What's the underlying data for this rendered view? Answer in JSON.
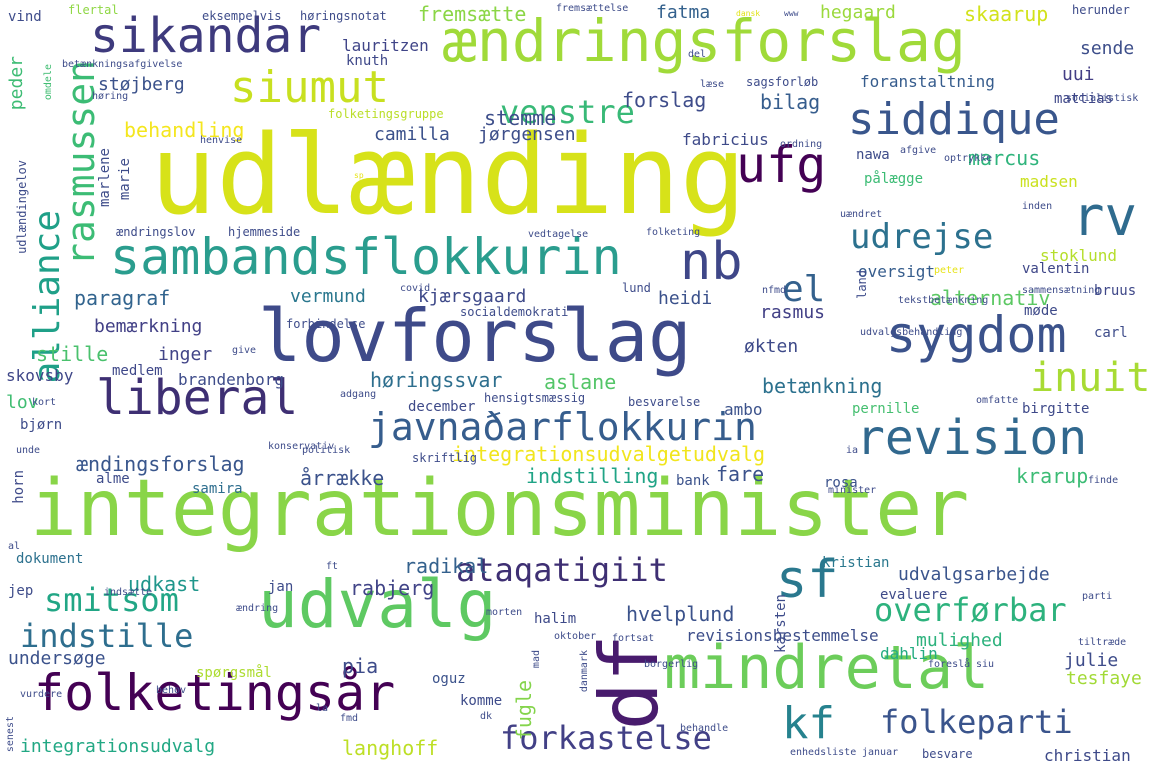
{
  "words": [
    {
      "text": "udlænding",
      "color": "#d7e219"
    },
    {
      "text": "integrationsminister",
      "color": "#89d548"
    },
    {
      "text": "lovforslag",
      "color": "#3e4a89"
    },
    {
      "text": "ændringsforslag",
      "color": "#a0da39"
    },
    {
      "text": "sambandsflokkurin",
      "color": "#2a9d8e"
    },
    {
      "text": "udvalg",
      "color": "#5ec962"
    },
    {
      "text": "mindretal",
      "color": "#6ccd5a"
    },
    {
      "text": "folketingsår",
      "color": "#440154"
    },
    {
      "text": "revision",
      "color": "#31688e"
    },
    {
      "text": "sygdom",
      "color": "#3b528b"
    },
    {
      "text": "liberal",
      "color": "#3e2f73"
    },
    {
      "text": "javnaðarflokkurin",
      "color": "#365d8d"
    },
    {
      "text": "siddique",
      "color": "#39568c"
    },
    {
      "text": "sikandar",
      "color": "#3e3a7d"
    },
    {
      "text": "siumut",
      "color": "#c8e020"
    },
    {
      "text": "rasmussen",
      "color": "#3cbc75"
    },
    {
      "text": "alliance",
      "color": "#1fa088"
    },
    {
      "text": "ufg",
      "color": "#440154"
    },
    {
      "text": "rv",
      "color": "#2f6b8e"
    },
    {
      "text": "nb",
      "color": "#3f4788"
    },
    {
      "text": "el",
      "color": "#34618d"
    },
    {
      "text": "df",
      "color": "#481b6d"
    },
    {
      "text": "sf",
      "color": "#2a788e"
    },
    {
      "text": "kf",
      "color": "#26828e"
    },
    {
      "text": "udrejse",
      "color": "#2c718e"
    },
    {
      "text": "inuit",
      "color": "#a8db34"
    },
    {
      "text": "venstre",
      "color": "#38b977"
    },
    {
      "text": "ataqatigiit",
      "color": "#3e2f73"
    },
    {
      "text": "smitsom",
      "color": "#21a685"
    },
    {
      "text": "indstille",
      "color": "#2e6e8e"
    },
    {
      "text": "overførbar",
      "color": "#2db27d"
    },
    {
      "text": "forkastelse",
      "color": "#424086"
    },
    {
      "text": "folkeparti",
      "color": "#3a548c"
    },
    {
      "text": "fremsætte",
      "color": "#8bd646"
    },
    {
      "text": "fatma",
      "color": "#34618d"
    },
    {
      "text": "hegaard",
      "color": "#9bd93c"
    },
    {
      "text": "skaarup",
      "color": "#d2e21b"
    },
    {
      "text": "sende",
      "color": "#3d4e8a"
    },
    {
      "text": "uui",
      "color": "#433e85"
    },
    {
      "text": "støjberg",
      "color": "#3b528b"
    },
    {
      "text": "forslag",
      "color": "#3e4c8a"
    },
    {
      "text": "bilag",
      "color": "#365d8d"
    },
    {
      "text": "behandling",
      "color": "#f4e61e"
    },
    {
      "text": "stemme",
      "color": "#3d4e8a"
    },
    {
      "text": "camilla",
      "color": "#3b518b"
    },
    {
      "text": "jørgensen",
      "color": "#3d4e8a"
    },
    {
      "text": "fabricius",
      "color": "#3e4a89"
    },
    {
      "text": "marcus",
      "color": "#2fb47c"
    },
    {
      "text": "madsen",
      "color": "#cae11f"
    },
    {
      "text": "pålægge",
      "color": "#3cbc75"
    },
    {
      "text": "nawa",
      "color": "#3e4c8a"
    },
    {
      "text": "mattias",
      "color": "#3f4788"
    },
    {
      "text": "foranstaltning",
      "color": "#365c8d"
    },
    {
      "text": "lauritzen",
      "color": "#404588"
    },
    {
      "text": "knuth",
      "color": "#3f4889"
    },
    {
      "text": "peder",
      "color": "#3dbc74"
    },
    {
      "text": "paragraf",
      "color": "#32648e"
    },
    {
      "text": "vermund",
      "color": "#2a778e"
    },
    {
      "text": "kjærsgaard",
      "color": "#3e4989"
    },
    {
      "text": "alternativ",
      "color": "#5cc863"
    },
    {
      "text": "heidi",
      "color": "#3b518b"
    },
    {
      "text": "rasmus",
      "color": "#424086"
    },
    {
      "text": "bemærkning",
      "color": "#424086"
    },
    {
      "text": "stille",
      "color": "#4ac16d"
    },
    {
      "text": "inger",
      "color": "#414487"
    },
    {
      "text": "økten",
      "color": "#3e4a89"
    },
    {
      "text": "høringssvar",
      "color": "#2e6f8e"
    },
    {
      "text": "aslane",
      "color": "#54c568"
    },
    {
      "text": "betænkning",
      "color": "#2c718e"
    },
    {
      "text": "lov",
      "color": "#40bd72"
    },
    {
      "text": "skovsby",
      "color": "#3f4788"
    },
    {
      "text": "brandenborg",
      "color": "#3e4c8a"
    },
    {
      "text": "medlem",
      "color": "#3f4889"
    },
    {
      "text": "december",
      "color": "#3e4a89"
    },
    {
      "text": "ambo",
      "color": "#3b528b"
    },
    {
      "text": "ændingsforslag",
      "color": "#39568c"
    },
    {
      "text": "integrationsudvalgetudvalg",
      "color": "#f1e51d"
    },
    {
      "text": "årrække",
      "color": "#3b528b"
    },
    {
      "text": "indstilling",
      "color": "#20a486"
    },
    {
      "text": "fare",
      "color": "#3b528b"
    },
    {
      "text": "krarup",
      "color": "#3cbc75"
    },
    {
      "text": "udkast",
      "color": "#1f968b"
    },
    {
      "text": "radikal",
      "color": "#34618d"
    },
    {
      "text": "rabjerg",
      "color": "#414487"
    },
    {
      "text": "udvalgsarbejde",
      "color": "#3a548c"
    },
    {
      "text": "hvelplund",
      "color": "#3b528b"
    },
    {
      "text": "revisionsbestemmelse",
      "color": "#3d4e8a"
    },
    {
      "text": "mulighed",
      "color": "#2db27d"
    },
    {
      "text": "undersøge",
      "color": "#3b528b"
    },
    {
      "text": "pia",
      "color": "#3e4c8a"
    },
    {
      "text": "fugle",
      "color": "#84d44b"
    },
    {
      "text": "dahlin",
      "color": "#25ab82"
    },
    {
      "text": "julie",
      "color": "#3e4c8a"
    },
    {
      "text": "tesfaye",
      "color": "#a2da37"
    },
    {
      "text": "integrationsudvalg",
      "color": "#22a884"
    },
    {
      "text": "langhoff",
      "color": "#bddf26"
    },
    {
      "text": "christian",
      "color": "#3e4a89"
    },
    {
      "text": "stoklund",
      "color": "#b5de2b"
    },
    {
      "text": "oversigt",
      "color": "#365d8d"
    },
    {
      "text": "valentin",
      "color": "#3f4788"
    },
    {
      "text": "bruus",
      "color": "#3f4889"
    },
    {
      "text": "møde",
      "color": "#3e4a89"
    },
    {
      "text": "carl",
      "color": "#3e4c8a"
    },
    {
      "text": "pernille",
      "color": "#45bf70"
    },
    {
      "text": "birgitte",
      "color": "#3e4989"
    },
    {
      "text": "bjørn",
      "color": "#3e4c8a"
    },
    {
      "text": "horn",
      "color": "#3e4a89"
    },
    {
      "text": "alme",
      "color": "#3e4c8a"
    },
    {
      "text": "samira",
      "color": "#2e6e8e"
    },
    {
      "text": "bank",
      "color": "#3b528b"
    },
    {
      "text": "rosa",
      "color": "#3b528b"
    },
    {
      "text": "dokument",
      "color": "#2c718e"
    },
    {
      "text": "kristian",
      "color": "#2a788e"
    },
    {
      "text": "evaluere",
      "color": "#3e4a89"
    },
    {
      "text": "jan",
      "color": "#3e4c8a"
    },
    {
      "text": "jep",
      "color": "#3e4c8a"
    },
    {
      "text": "oguz",
      "color": "#3b528b"
    },
    {
      "text": "komme",
      "color": "#3e4c8a"
    },
    {
      "text": "spørgsmål",
      "color": "#addc30"
    },
    {
      "text": "halim",
      "color": "#3e4a89"
    },
    {
      "text": "karsten",
      "color": "#3e4c8a"
    },
    {
      "text": "marie",
      "color": "#3e4c8a"
    },
    {
      "text": "marlene",
      "color": "#3e4c8a"
    },
    {
      "text": "vind",
      "color": "#3e4c8a"
    },
    {
      "text": "flertal",
      "color": "#8fd744"
    },
    {
      "text": "eksempelvis",
      "color": "#3e4c8a"
    },
    {
      "text": "høringsnotat",
      "color": "#3e4c8a"
    },
    {
      "text": "fremsættelse",
      "color": "#3e4c8a"
    },
    {
      "text": "dansk",
      "color": "#e1e419"
    },
    {
      "text": "www",
      "color": "#3e4c8a"
    },
    {
      "text": "herunder",
      "color": "#3e4c8a"
    },
    {
      "text": "socialistisk",
      "color": "#3e4c8a"
    },
    {
      "text": "del",
      "color": "#3e4c8a"
    },
    {
      "text": "betænkningsafgivelse",
      "color": "#3e4c8a"
    },
    {
      "text": "folketingsgruppe",
      "color": "#bade28"
    },
    {
      "text": "omdele",
      "color": "#40bd72"
    },
    {
      "text": "høring",
      "color": "#3e4c8a"
    },
    {
      "text": "læse",
      "color": "#3e4c8a"
    },
    {
      "text": "sagsforløb",
      "color": "#3e4c8a"
    },
    {
      "text": "henvise",
      "color": "#3e4c8a"
    },
    {
      "text": "ordning",
      "color": "#3e4c8a"
    },
    {
      "text": "afgive",
      "color": "#3e4c8a"
    },
    {
      "text": "optrykke",
      "color": "#3e4c8a"
    },
    {
      "text": "udlændingelov",
      "color": "#3e4c8a"
    },
    {
      "text": "ændringslov",
      "color": "#3e4c8a"
    },
    {
      "text": "hjemmeside",
      "color": "#3e4c8a"
    },
    {
      "text": "vedtagelse",
      "color": "#3e4c8a"
    },
    {
      "text": "folketing",
      "color": "#3e4c8a"
    },
    {
      "text": "uændret",
      "color": "#3e4c8a"
    },
    {
      "text": "inden",
      "color": "#3e4c8a"
    },
    {
      "text": "sp",
      "color": "#e7e419"
    },
    {
      "text": "peter",
      "color": "#e7e419"
    },
    {
      "text": "nfmd",
      "color": "#3e4c8a"
    },
    {
      "text": "lund",
      "color": "#3e4c8a"
    },
    {
      "text": "covid",
      "color": "#3e4c8a"
    },
    {
      "text": "forbindelse",
      "color": "#3e4c8a"
    },
    {
      "text": "socialdemokrati",
      "color": "#3e4c8a"
    },
    {
      "text": "land",
      "color": "#3e4c8a"
    },
    {
      "text": "tekstbetænkning",
      "color": "#3e4c8a"
    },
    {
      "text": "sammensætning",
      "color": "#3e4c8a"
    },
    {
      "text": "udvalgsbehandling",
      "color": "#3e4c8a"
    },
    {
      "text": "give",
      "color": "#3e4c8a"
    },
    {
      "text": "adgang",
      "color": "#3e4c8a"
    },
    {
      "text": "hensigtsmæssig",
      "color": "#3e4c8a"
    },
    {
      "text": "besvarelse",
      "color": "#3e4c8a"
    },
    {
      "text": "omfatte",
      "color": "#3e4c8a"
    },
    {
      "text": "kort",
      "color": "#3e4c8a"
    },
    {
      "text": "konservativ",
      "color": "#3e4c8a"
    },
    {
      "text": "politisk",
      "color": "#3e4c8a"
    },
    {
      "text": "skriftlig",
      "color": "#3e4c8a"
    },
    {
      "text": "unde",
      "color": "#3e4c8a"
    },
    {
      "text": "ia",
      "color": "#3e4c8a"
    },
    {
      "text": "minister",
      "color": "#3e4c8a"
    },
    {
      "text": "finde",
      "color": "#3e4c8a"
    },
    {
      "text": "al",
      "color": "#3e4c8a"
    },
    {
      "text": "ft",
      "color": "#3e4c8a"
    },
    {
      "text": "indsætte",
      "color": "#3e4c8a"
    },
    {
      "text": "parti",
      "color": "#3e4c8a"
    },
    {
      "text": "ændring",
      "color": "#3e4c8a"
    },
    {
      "text": "morten",
      "color": "#3e4c8a"
    },
    {
      "text": "oktober",
      "color": "#3e4c8a"
    },
    {
      "text": "fortsat",
      "color": "#3e4c8a"
    },
    {
      "text": "tiltræde",
      "color": "#3e4c8a"
    },
    {
      "text": "borgerlig",
      "color": "#3e4c8a"
    },
    {
      "text": "foreslå",
      "color": "#3e4c8a"
    },
    {
      "text": "danmark",
      "color": "#3e4c8a"
    },
    {
      "text": "siu",
      "color": "#3e4c8a"
    },
    {
      "text": "behov",
      "color": "#3e4c8a"
    },
    {
      "text": "vurdere",
      "color": "#3e4c8a"
    },
    {
      "text": "senest",
      "color": "#3e4c8a"
    },
    {
      "text": "la",
      "color": "#3e4c8a"
    },
    {
      "text": "fmd",
      "color": "#3e4c8a"
    },
    {
      "text": "dk",
      "color": "#3e4c8a"
    },
    {
      "text": "mad",
      "color": "#3e4c8a"
    },
    {
      "text": "behandle",
      "color": "#3e4c8a"
    },
    {
      "text": "enhedsliste",
      "color": "#3e4c8a"
    },
    {
      "text": "januar",
      "color": "#3e4c8a"
    },
    {
      "text": "besvare",
      "color": "#3e4c8a"
    }
  ]
}
